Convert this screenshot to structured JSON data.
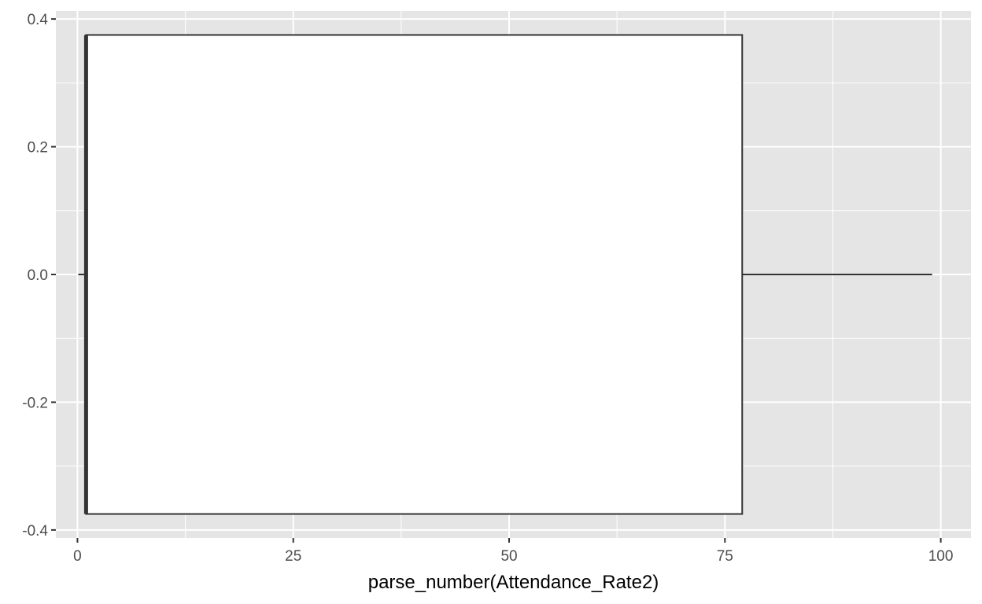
{
  "chart_data": {
    "type": "boxplot",
    "title": "",
    "xlabel": "parse_number(Attendance_Rate2)",
    "ylabel": "",
    "xlim": [
      -2.5,
      103.5
    ],
    "ylim": [
      -0.4125,
      0.4125
    ],
    "x_ticks": [
      0,
      25,
      50,
      75,
      100
    ],
    "x_tick_labels": [
      "0",
      "25",
      "50",
      "75",
      "100"
    ],
    "y_ticks": [
      -0.4,
      -0.2,
      0.0,
      0.2,
      0.4
    ],
    "y_tick_labels": [
      "-0.4",
      "-0.2",
      "0.0",
      "0.2",
      "0.4"
    ],
    "grid": true,
    "box": {
      "min": 0.1,
      "q1": 1,
      "median": 1,
      "q3": 77,
      "max": 99,
      "y_center": 0,
      "half_height": 0.375
    },
    "colors": {
      "panel_background": "#e5e5e5",
      "grid": "#ffffff",
      "box_fill": "#ffffff",
      "box_stroke": "#333333"
    }
  }
}
